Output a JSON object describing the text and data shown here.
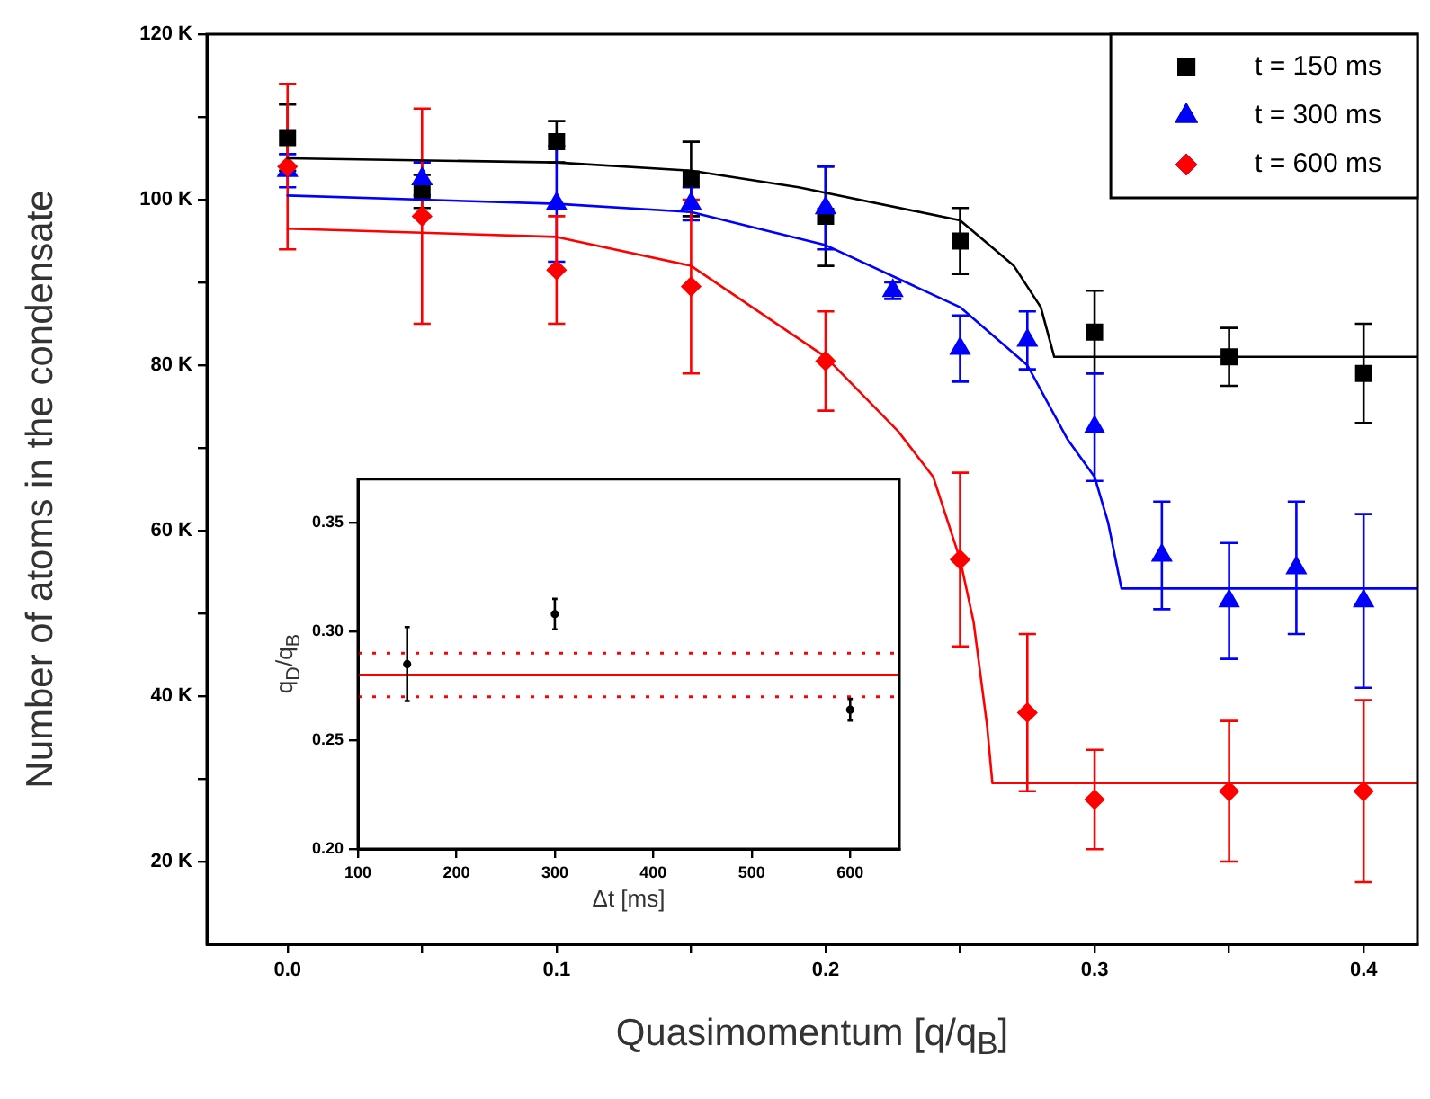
{
  "chart_data": [
    {
      "type": "scatter",
      "xlabel": "Quasimomentum [q/q$_{B}$]",
      "ylabel": "Number of atoms in the condensate",
      "legend": "top right",
      "xlim": [
        -0.03,
        0.42
      ],
      "xticks": [
        {
          "value": 0,
          "label": "0.0"
        },
        {
          "value": 0.05,
          "label": null
        },
        0.1,
        {
          "value": 0.15,
          "label": null
        },
        0.2,
        {
          "value": 0.25,
          "label": null
        },
        0.3,
        {
          "value": 0.35,
          "label": null
        },
        0.4
      ],
      "ylim": [
        10,
        120
      ],
      "yticks": [
        {
          "value": 20,
          "label": "20 K"
        },
        {
          "value": 30,
          "label": null
        },
        {
          "value": 40,
          "label": "40 K"
        },
        {
          "value": 50,
          "label": null
        },
        {
          "value": 60,
          "label": "60 K"
        },
        {
          "value": 70,
          "label": null
        },
        {
          "value": 80,
          "label": "80 K"
        },
        {
          "value": 90,
          "label": null
        },
        {
          "value": 100,
          "label": "100 K"
        },
        {
          "value": 110,
          "label": null
        },
        {
          "value": 120,
          "label": "120 K"
        }
      ],
      "x": [
        0,
        0.05,
        0.1,
        0.15,
        0.2,
        0.25,
        0.3,
        0.35,
        0.4
      ],
      "series": [
        {
          "name": "t = 150 ms",
          "color": "#000000",
          "marker": "square",
          "values": [
            107.5,
            101,
            107,
            102.5,
            98,
            95,
            84,
            81,
            79
          ],
          "errors": [
            4,
            2,
            2.5,
            4.5,
            6,
            4,
            5,
            3.5,
            6
          ]
        },
        {
          "name": "t = 300 ms",
          "color": "#0000ff",
          "marker": "triangle",
          "x": [
            0,
            0.05,
            0.1,
            0.15,
            0.2,
            0.225,
            0.25,
            0.275,
            0.3,
            0.325,
            0.35,
            0.375,
            0.4
          ],
          "values": [
            103.5,
            102.5,
            99.5,
            99.5,
            99,
            89,
            82,
            83,
            72.5,
            57,
            51.5,
            55.5,
            51.5
          ],
          "errors": [
            2,
            2,
            7,
            2,
            5,
            1,
            4,
            3.5,
            6.5,
            6.5,
            7,
            8,
            10.5
          ]
        },
        {
          "name": "t = 600 ms",
          "color": "#ff0000",
          "marker": "diamond",
          "values": [
            104,
            98,
            91.5,
            89.5,
            80.5,
            56.5,
            38,
            27.5,
            28.5,
            28.5
          ],
          "x": [
            0,
            0.05,
            0.1,
            0.15,
            0.2,
            0.25,
            0.275,
            0.3,
            0.35,
            0.4
          ],
          "errors": [
            10,
            13,
            6.5,
            10.5,
            6,
            10.5,
            9.5,
            6,
            8.5,
            11
          ]
        },
        {
          "type": "line",
          "color": "#000000",
          "x": [
            0,
            0.1,
            0.15,
            0.19,
            0.25,
            0.27,
            0.28,
            0.285,
            0.42
          ],
          "values": [
            105,
            104.5,
            103.5,
            101.5,
            97.5,
            92,
            87,
            81,
            81
          ]
        },
        {
          "type": "line",
          "color": "#0000ff",
          "x": [
            0,
            0.1,
            0.15,
            0.2,
            0.25,
            0.275,
            0.29,
            0.3,
            0.305,
            0.31,
            0.42
          ],
          "values": [
            100.5,
            99.5,
            98.5,
            94.5,
            87,
            80,
            71,
            66.5,
            61,
            53,
            53
          ]
        },
        {
          "type": "line",
          "color": "#ff0000",
          "x": [
            0,
            0.1,
            0.15,
            0.2,
            0.227,
            0.24,
            0.25,
            0.255,
            0.26,
            0.262,
            0.42
          ],
          "values": [
            96.5,
            95.5,
            92,
            81,
            72,
            66.5,
            56.5,
            49,
            36.5,
            29.5,
            29.5
          ]
        }
      ]
    },
    {
      "type": "scatter",
      "xlabel": "Δt [ms]",
      "ylabel": "q$_{D}$/q$_{B}$",
      "xlim": [
        100,
        650
      ],
      "xticks": [
        100,
        200,
        300,
        400,
        500,
        600
      ],
      "ylim": [
        0.2,
        0.37
      ],
      "yticks": [
        {
          "value": 0.2,
          "label": "0.20"
        },
        0.25,
        {
          "value": 0.3,
          "label": "0.30"
        },
        0.35
      ],
      "ref_lines": [
        {
          "axis": "y",
          "value": 0.28,
          "color": "#ff0000",
          "line_style": "solid"
        },
        {
          "axis": "y",
          "value": 0.29,
          "color": "#ff0000",
          "line_style": "dotted"
        },
        {
          "axis": "y",
          "value": 0.27,
          "color": "#ff0000",
          "line_style": "dotted"
        }
      ],
      "series": [
        {
          "color": "#000000",
          "marker": "circle",
          "x": [
            150,
            300,
            600
          ],
          "values": [
            0.285,
            0.308,
            0.264
          ],
          "errors": [
            0.017,
            0.007,
            0.005
          ]
        }
      ]
    }
  ]
}
